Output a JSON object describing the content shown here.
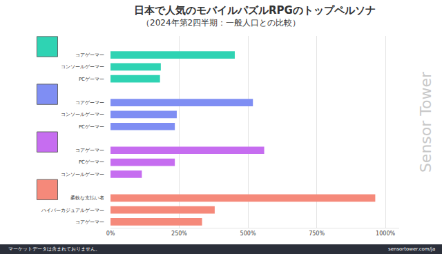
{
  "chart_data": {
    "type": "bar",
    "orientation": "horizontal",
    "title": "日本で人気のモバイルパズルRPGのトップペルソナ",
    "subtitle": "（2024年第2四半期：一般人口との比較）",
    "categories": [
      null,
      "コアゲーマー",
      "コンソールゲーマー",
      "PCゲーマー",
      null,
      "コアゲーマー",
      "コンソールゲーマー",
      "PCゲーマー",
      null,
      "コアゲーマー",
      "PCゲーマー",
      "コンソールゲーマー",
      null,
      "柔軟な支払い者",
      "ハイパーカジュアルゲーマー",
      "コアゲーマー"
    ],
    "values": [
      null,
      452,
      183,
      180,
      null,
      518,
      241,
      234,
      null,
      559,
      234,
      114,
      null,
      963,
      379,
      333
    ],
    "colors": [
      null,
      "#2fd3b3",
      "#2fd3b3",
      "#2fd3b3",
      null,
      "#7f8ef3",
      "#7f8ef3",
      "#7f8ef3",
      null,
      "#c66df0",
      "#c66df0",
      "#c66df0",
      null,
      "#f5897a",
      "#f5897a",
      "#f5897a"
    ],
    "xlim": [
      0,
      1050
    ],
    "xticks": [
      {
        "value": 0,
        "label": "0%"
      },
      {
        "value": 250,
        "label": "250%"
      },
      {
        "value": 500,
        "label": "500%"
      },
      {
        "value": 750,
        "label": "750%"
      },
      {
        "value": 1000,
        "label": "1000%"
      }
    ],
    "grid": true,
    "data_labels": false,
    "watermark": "Sensor Tower",
    "note": "マーケットデータは含まれておりません。",
    "source": "sensortower.com/ja"
  }
}
